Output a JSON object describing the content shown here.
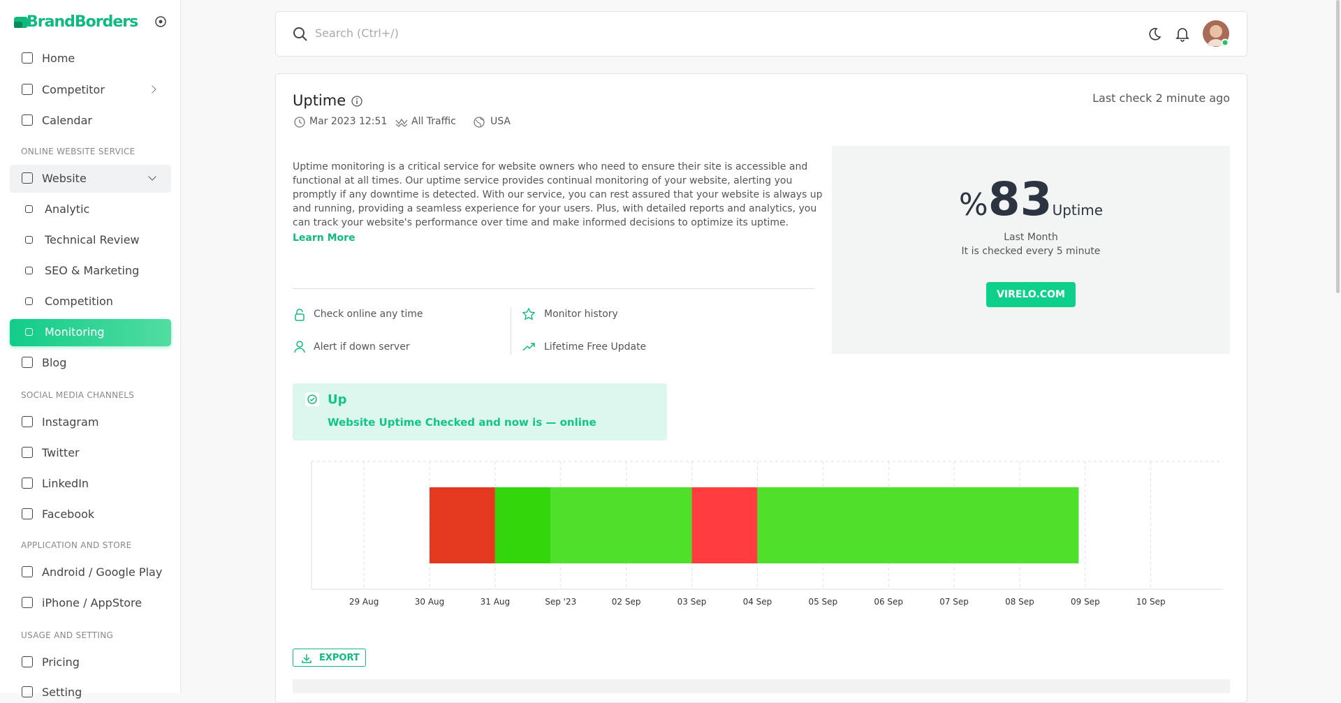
{
  "sidebar": {
    "brand": "BrandBorders",
    "entries": [
      {
        "label": "Home"
      },
      {
        "label": "Competitor"
      },
      {
        "label": "Calendar"
      },
      {
        "heading": "ONLINE WEBSITE SERVICE"
      },
      {
        "label": "Website"
      },
      {
        "label": "Analytic"
      },
      {
        "label": "Technical Review"
      },
      {
        "label": "SEO & Marketing"
      },
      {
        "label": "Competition"
      },
      {
        "label": "Monitoring"
      },
      {
        "label": "Blog"
      },
      {
        "heading": "SOCIAL MEDIA CHANNELS"
      },
      {
        "label": "Instagram"
      },
      {
        "label": "Twitter"
      },
      {
        "label": "LinkedIn"
      },
      {
        "label": "Facebook"
      },
      {
        "heading": "APPLICATION AND STORE"
      },
      {
        "label": "Android / Google Play"
      },
      {
        "label": "iPhone / AppStore"
      },
      {
        "heading": "USAGE AND SETTING"
      },
      {
        "label": "Pricing"
      },
      {
        "label": "Setting"
      }
    ]
  },
  "header": {
    "search_placeholder": "Search (Ctrl+/)"
  },
  "uptime": {
    "title": "Uptime",
    "meta": [
      "Mar 2023 12:51",
      "All Traffic",
      "USA"
    ],
    "last_check": "Last check 2 minute ago",
    "description": "Uptime monitoring is a critical service for website owners who need to ensure their site is accessible and functional at all times. Our uptime service provides continual monitoring of your website, alerting you promptly if any downtime is detected. With our service, you can rest assured that your website is always up and running, providing a seamless experience for your users. Plus, with detailed reports and analytics, you can track your website's performance over time and make informed decisions to optimize its uptime.",
    "learn_more": "Learn More",
    "features": [
      "Check online any time",
      "Monitor history",
      "Alert if down server",
      "Lifetime Free Update"
    ],
    "stat": {
      "symbol": "%",
      "value": 83,
      "unit": "Uptime",
      "period": "Last Month",
      "frequency": "It is checked every 5 minute",
      "button": "VIRELO.COM"
    },
    "status": {
      "title": "Up",
      "message": "Website Uptime Checked and now is — ",
      "state": "online"
    },
    "export": "EXPORT"
  },
  "uptime_chart": {
    "type": "timeline",
    "xlim": [
      -0.8,
      13.1
    ],
    "xticks": [
      {
        "value": 0,
        "label": "29 Aug"
      },
      {
        "value": 1,
        "label": "30 Aug"
      },
      {
        "value": 2,
        "label": "31 Aug"
      },
      {
        "value": 3,
        "label": "Sep '23"
      },
      {
        "value": 4,
        "label": "02 Sep"
      },
      {
        "value": 5,
        "label": "03 Sep"
      },
      {
        "value": 6,
        "label": "04 Sep"
      },
      {
        "value": 7,
        "label": "05 Sep"
      },
      {
        "value": 8,
        "label": "06 Sep"
      },
      {
        "value": 9,
        "label": "07 Sep"
      },
      {
        "value": 10,
        "label": "08 Sep"
      },
      {
        "value": 11,
        "label": "09 Sep"
      },
      {
        "value": 12,
        "label": "10 Sep"
      }
    ],
    "grid": true,
    "segments": [
      {
        "start": 1,
        "end": 2,
        "color": "#e33a1f"
      },
      {
        "start": 2,
        "end": 2.85,
        "color": "#33d60a"
      },
      {
        "start": 2.85,
        "end": 5,
        "color": "#4fe02b"
      },
      {
        "start": 5,
        "end": 6,
        "color": "#ff3d40"
      },
      {
        "start": 6,
        "end": 10.9,
        "color": "#4fe02b"
      }
    ]
  }
}
